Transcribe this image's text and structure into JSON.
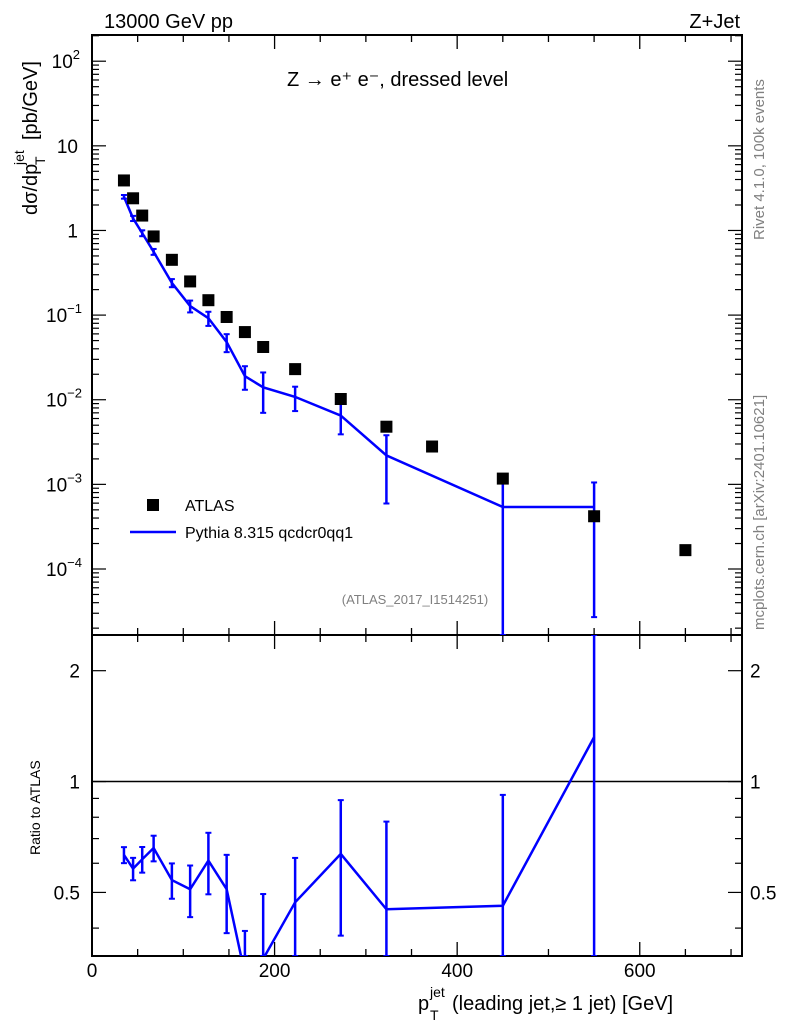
{
  "header": {
    "left_title": "13000 GeV pp",
    "right_title": "Z+Jet",
    "process_label": "Z → e⁺ e⁻, dressed level",
    "side_label_rivet": "Rivet 4.1.0,  100k events",
    "side_label_mcplots": "mcplots.cern.ch [arXiv:2401.10621]",
    "analysis_id": "(ATLAS_2017_I1514251)"
  },
  "colors": {
    "data": "#000000",
    "mc": "#0000ff",
    "grey": "#808080"
  },
  "chart_data": [
    {
      "type": "scatter",
      "panel": "main",
      "ylabel": "dσ/dp_T^jet [pb/GeV]",
      "ylabel_parts": {
        "main": "dσ/dp",
        "sub": "T",
        "sup": "jet",
        "unit": "[pb/GeV]"
      },
      "yscale": "log",
      "ylim": [
        1.66e-05,
        204
      ],
      "xlim": [
        0,
        712
      ],
      "ytick_labels": [
        {
          "v": 100,
          "base": "10",
          "exp": "2"
        },
        {
          "v": 10,
          "base": "10",
          "exp": ""
        },
        {
          "v": 1,
          "base": "1",
          "exp": ""
        },
        {
          "v": 0.1,
          "base": "10",
          "exp": "−1"
        },
        {
          "v": 0.01,
          "base": "10",
          "exp": "−2"
        },
        {
          "v": 0.001,
          "base": "10",
          "exp": "−3"
        },
        {
          "v": 0.0001,
          "base": "10",
          "exp": "−4"
        }
      ],
      "legend": {
        "placement": "bottom-left",
        "entries": [
          "ATLAS",
          "Pythia 8.315 qcdcr0qq1"
        ]
      },
      "series": [
        {
          "name": "ATLAS",
          "style": "markers",
          "x": [
            35,
            45,
            55,
            67.5,
            87.5,
            107.5,
            127.5,
            147.5,
            167.5,
            187.5,
            222.5,
            272.5,
            322.5,
            372.5,
            450,
            550,
            650
          ],
          "y": [
            3.9,
            2.4,
            1.5,
            0.85,
            0.45,
            0.25,
            0.15,
            0.095,
            0.063,
            0.042,
            0.023,
            0.0102,
            0.0048,
            0.0028,
            0.00117,
            0.00042,
            0.000167
          ]
        },
        {
          "name": "Pythia 8.315 qcdcr0qq1",
          "style": "line",
          "x": [
            35,
            45,
            55,
            67.5,
            87.5,
            107.5,
            127.5,
            147.5,
            167.5,
            187.5,
            222.5,
            272.5,
            322.5,
            450,
            550
          ],
          "y": [
            2.5,
            1.39,
            0.93,
            0.56,
            0.24,
            0.128,
            0.092,
            0.048,
            0.019,
            0.014,
            0.0108,
            0.0065,
            0.0022,
            0.00054,
            0.00054
          ],
          "rel_err": [
            0.05,
            0.07,
            0.08,
            0.08,
            0.11,
            0.16,
            0.19,
            0.24,
            0.31,
            0.5,
            0.32,
            0.4,
            0.73,
            1.0,
            0.95
          ]
        }
      ]
    },
    {
      "type": "line",
      "panel": "ratio",
      "ylabel": "Ratio to ATLAS",
      "xlabel": "p_T^jet (leading jet,≥ 1 jet) [GeV]",
      "xlabel_parts": {
        "main": "p",
        "sub": "T",
        "sup": "jet",
        "rest": " (leading jet,≥ 1 jet) [GeV]"
      },
      "yscale": "log",
      "ylim": [
        0.336,
        2.5
      ],
      "xlim": [
        0,
        712
      ],
      "ytick_labels": [
        "0.5",
        "1",
        "2"
      ],
      "ytick_values": [
        0.5,
        1,
        2
      ],
      "xtick_labels": [
        "0",
        "200",
        "400",
        "600"
      ],
      "xtick_values": [
        0,
        200,
        400,
        600
      ],
      "reference": 1,
      "series": [
        {
          "name": "Pythia 8.315 qcdcr0qq1 / ATLAS",
          "x": [
            35,
            45,
            55,
            67.5,
            87.5,
            107.5,
            127.5,
            147.5,
            167.5,
            187.5,
            222.5,
            272.5,
            322.5,
            450,
            550
          ],
          "y": [
            0.632,
            0.58,
            0.615,
            0.66,
            0.54,
            0.51,
            0.61,
            0.51,
            0.3,
            0.33,
            0.47,
            0.636,
            0.45,
            0.46,
            1.32
          ],
          "rel_err": [
            0.05,
            0.07,
            0.08,
            0.08,
            0.11,
            0.16,
            0.19,
            0.24,
            0.31,
            0.5,
            0.32,
            0.4,
            0.73,
            1.0,
            0.95
          ]
        }
      ]
    }
  ]
}
